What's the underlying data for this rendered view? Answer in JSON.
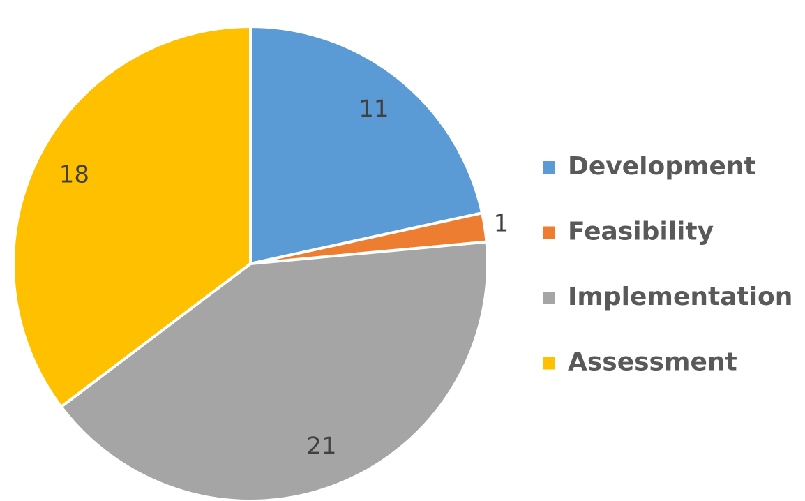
{
  "chart_data": {
    "type": "pie",
    "categories": [
      "Development",
      "Feasibility",
      "Implementation",
      "Assessment"
    ],
    "values": [
      11,
      1,
      21,
      18
    ],
    "colors": [
      "#5b9bd5",
      "#ed7d31",
      "#a5a5a5",
      "#ffc000"
    ],
    "legend": "right"
  }
}
